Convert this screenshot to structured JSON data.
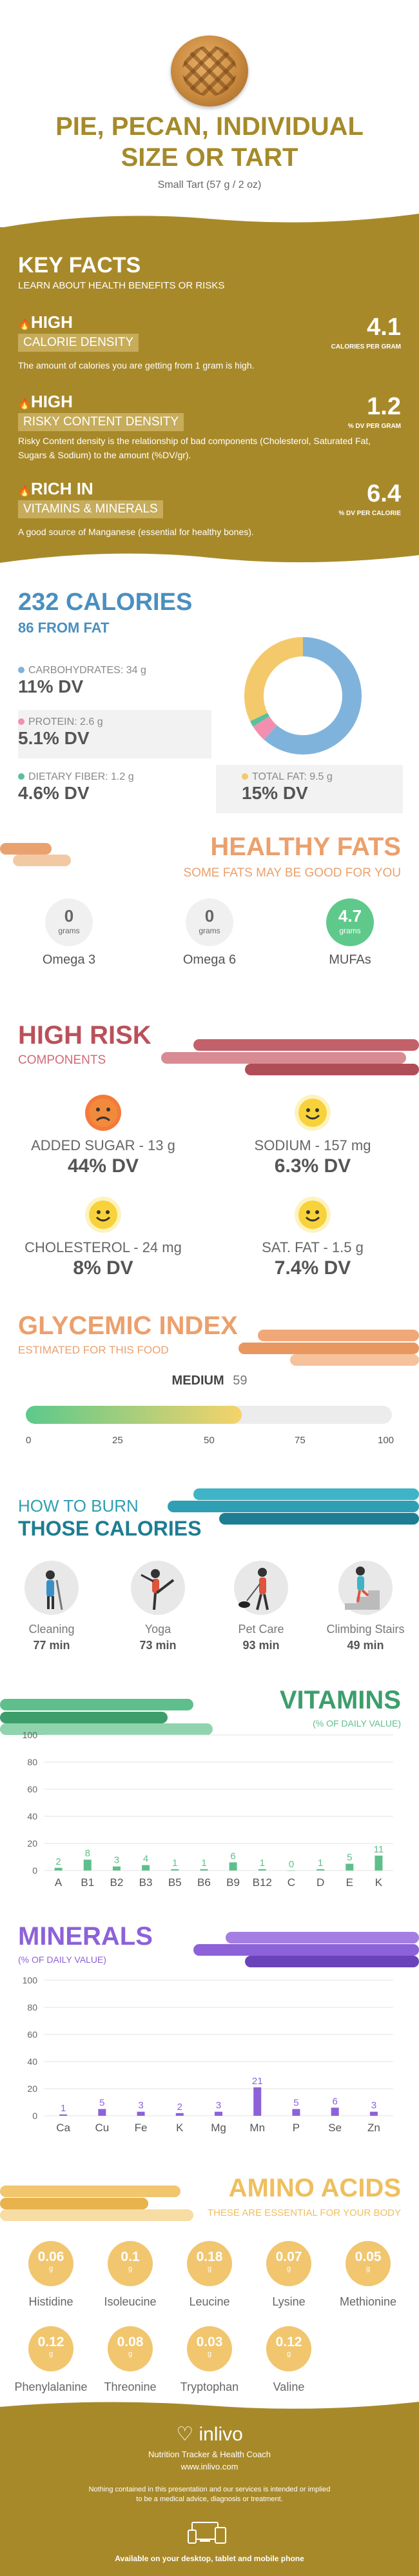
{
  "header": {
    "title_line1": "PIE, PECAN, INDIVIDUAL",
    "title_line2": "SIZE OR TART",
    "serving": "Small Tart (57 g / 2 oz)"
  },
  "key_facts": {
    "heading": "KEY FACTS",
    "subheading": "LEARN ABOUT HEALTH BENEFITS OR RISKS",
    "items": [
      {
        "level": "HIGH",
        "category": "CALORIE DENSITY",
        "value": "4.1",
        "unit": "CALORIES PER GRAM",
        "description": "The amount of calories you are getting from 1 gram is high."
      },
      {
        "level": "HIGH",
        "category": "RISKY CONTENT DENSITY",
        "value": "1.2",
        "unit": "% DV PER GRAM",
        "description": "Risky Content density is the relationship of bad components (Cholesterol, Saturated Fat, Sugars & Sodium) to the amount (%DV/gr)."
      },
      {
        "level": "RICH IN",
        "category": "VITAMINS & MINERALS",
        "value": "6.4",
        "unit": "% DV PER CALORIE",
        "description": "A good source of Manganese (essential for healthy bones)."
      }
    ]
  },
  "calories": {
    "heading": "232 CALORIES",
    "from_fat": "86 FROM FAT",
    "nutrients": [
      {
        "label": "CARBOHYDRATES: 34 g",
        "dv": "11% DV",
        "color": "#7fb3dc"
      },
      {
        "label": "PROTEIN: 2.6 g",
        "dv": "5.1% DV",
        "color": "#f28fb0"
      },
      {
        "label": "DIETARY FIBER: 1.2 g",
        "dv": "4.6% DV",
        "color": "#5bbf9b"
      },
      {
        "label": "TOTAL FAT: 9.5 g",
        "dv": "15% DV",
        "color": "#f4c96b"
      }
    ]
  },
  "healthy_fats": {
    "heading": "HEALTHY FATS",
    "subheading": "SOME FATS MAY BE GOOD FOR YOU",
    "items": [
      {
        "value": "0",
        "unit": "grams",
        "name": "Omega 3"
      },
      {
        "value": "0",
        "unit": "grams",
        "name": "Omega 6"
      },
      {
        "value": "4.7",
        "unit": "grams",
        "name": "MUFAs"
      }
    ]
  },
  "high_risk": {
    "heading": "HIGH RISK",
    "subheading": "COMPONENTS",
    "items": [
      {
        "label": "ADDED SUGAR - 13 g",
        "dv": "44% DV",
        "face": "sad"
      },
      {
        "label": "SODIUM - 157 mg",
        "dv": "6.3% DV",
        "face": "happy"
      },
      {
        "label": "CHOLESTEROL - 24 mg",
        "dv": "8% DV",
        "face": "happy"
      },
      {
        "label": "SAT. FAT - 1.5 g",
        "dv": "7.4% DV",
        "face": "happy"
      }
    ]
  },
  "glycemic": {
    "heading": "GLYCEMIC INDEX",
    "subheading": "ESTIMATED FOR THIS FOOD",
    "level": "MEDIUM",
    "value": "59",
    "score": 59,
    "ticks": [
      "0",
      "25",
      "50",
      "75",
      "100"
    ]
  },
  "burn": {
    "heading1": "HOW TO BURN",
    "heading2": "THOSE CALORIES",
    "activities": [
      {
        "name": "Cleaning",
        "minutes": "77 min"
      },
      {
        "name": "Yoga",
        "minutes": "73 min"
      },
      {
        "name": "Pet Care",
        "minutes": "93 min"
      },
      {
        "name": "Climbing Stairs",
        "minutes": "49 min"
      }
    ]
  },
  "vitamins_header": {
    "heading": "VITAMINS",
    "subheading": "(% OF DAILY VALUE)"
  },
  "minerals_header": {
    "heading": "MINERALS",
    "subheading": "(% OF DAILY VALUE)"
  },
  "chart_data": [
    {
      "type": "bar",
      "title": "VITAMINS",
      "ylabel": "(% OF DAILY VALUE)",
      "categories": [
        "A",
        "B1",
        "B2",
        "B3",
        "B5",
        "B6",
        "B9",
        "B12",
        "C",
        "D",
        "E",
        "K"
      ],
      "values": [
        2,
        8,
        3,
        4,
        1,
        1,
        6,
        1,
        0,
        1,
        5,
        11
      ],
      "ylim": [
        0,
        100
      ],
      "yticks": [
        "0",
        "20",
        "40",
        "60",
        "80",
        "100"
      ],
      "color": "#5fbf8c"
    },
    {
      "type": "bar",
      "title": "MINERALS",
      "ylabel": "(% OF DAILY VALUE)",
      "categories": [
        "Ca",
        "Cu",
        "Fe",
        "K",
        "Mg",
        "Mn",
        "P",
        "Se",
        "Zn"
      ],
      "values": [
        1,
        5,
        3,
        2,
        3,
        21,
        5,
        6,
        3
      ],
      "ylim": [
        0,
        100
      ],
      "yticks": [
        "0",
        "20",
        "40",
        "60",
        "80",
        "100"
      ],
      "color": "#8d62d8"
    }
  ],
  "amino": {
    "heading": "AMINO ACIDS",
    "subheading": "THESE ARE ESSENTIAL FOR YOUR BODY",
    "unit": "g",
    "items": [
      {
        "value": "0.06",
        "name": "Histidine"
      },
      {
        "value": "0.1",
        "name": "Isoleucine"
      },
      {
        "value": "0.18",
        "name": "Leucine"
      },
      {
        "value": "0.07",
        "name": "Lysine"
      },
      {
        "value": "0.05",
        "name": "Methionine"
      },
      {
        "value": "0.12",
        "name": "Phenylalanine"
      },
      {
        "value": "0.08",
        "name": "Threonine"
      },
      {
        "value": "0.03",
        "name": "Tryptophan"
      },
      {
        "value": "0.12",
        "name": "Valine"
      }
    ]
  },
  "footer": {
    "brand": "inlivo",
    "tagline": "Nutrition Tracker & Health Coach",
    "url": "www.inlivo.com",
    "disclaimer1": "Nothing contained in this presentation and our services is intended or implied",
    "disclaimer2": "to be a medical advice, diagnosis or treatment.",
    "available": "Available on your desktop, tablet and mobile phone"
  }
}
